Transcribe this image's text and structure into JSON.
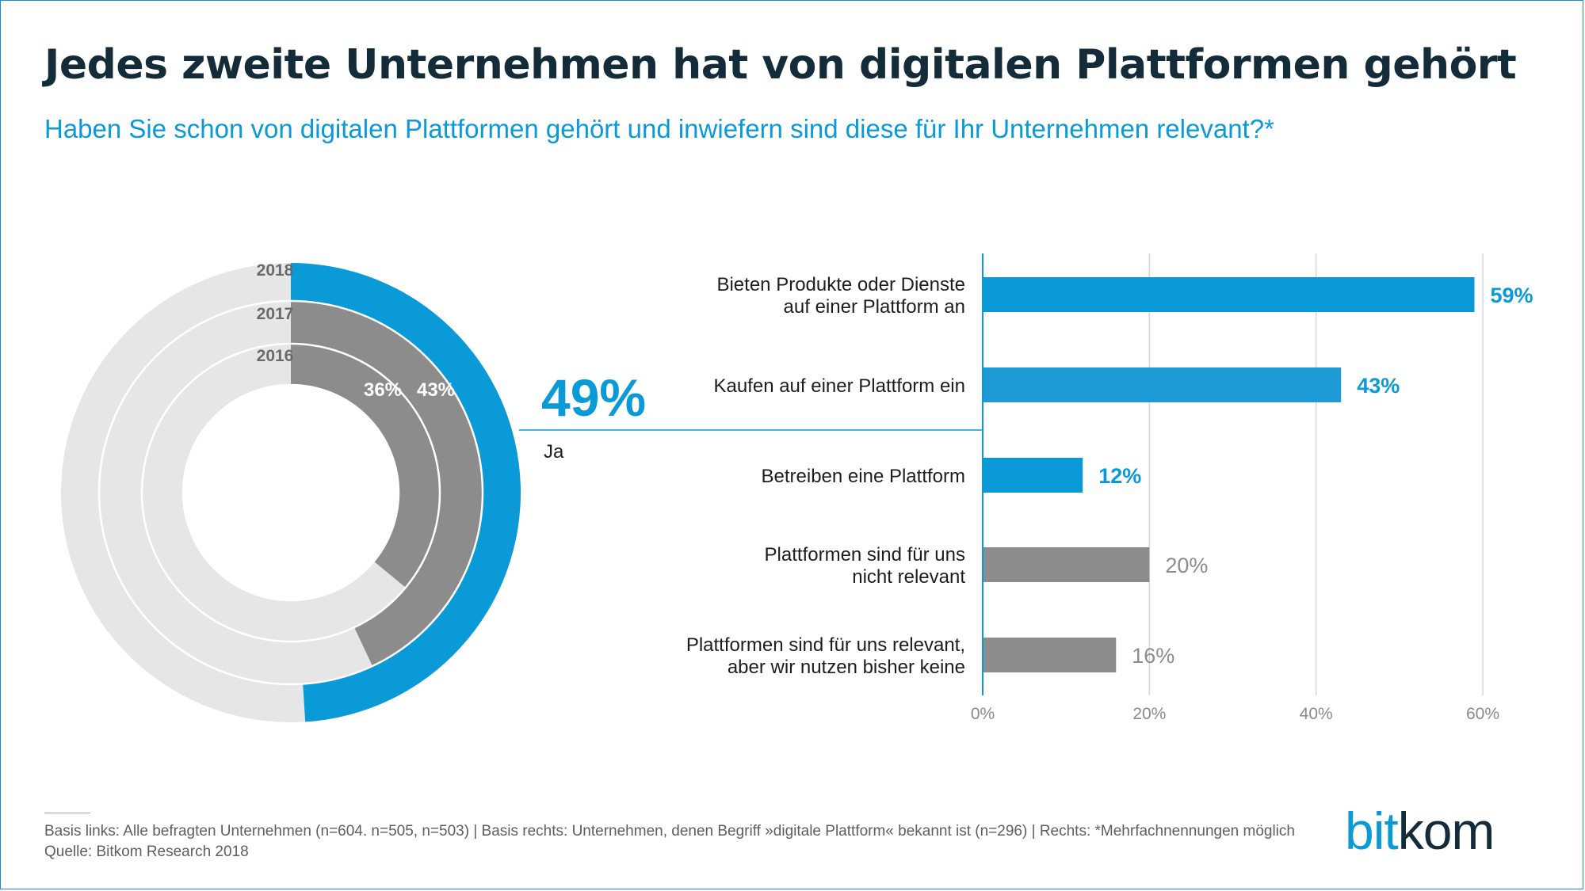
{
  "title": "Jedes zweite Unternehmen hat von digitalen Plattformen gehört",
  "subtitle": "Haben Sie schon von digitalen Plattformen gehört und inwiefern sind diese für Ihr Unternehmen relevant?*",
  "colors": {
    "accent_blue": "#0a9ad8",
    "mid_blue": "#1e9bd6",
    "dark_gray": "#8c8c8c",
    "light_gray": "#e6e6e6",
    "title": "#142b3a"
  },
  "chart_data": [
    {
      "type": "donut",
      "rings": [
        {
          "year": "2018",
          "value": 49,
          "label": "49%",
          "color": "#0a9ad8"
        },
        {
          "year": "2017",
          "value": 43,
          "label": "43%",
          "color": "#8c8c8c"
        },
        {
          "year": "2016",
          "value": 36,
          "label": "36%",
          "color": "#8c8c8c"
        }
      ],
      "callout": {
        "value": "49%",
        "label": "Ja"
      }
    },
    {
      "type": "bar",
      "orientation": "horizontal",
      "categories": [
        [
          "Bieten Produkte oder Dienste",
          "auf einer Plattform an"
        ],
        [
          "Kaufen auf einer Plattform ein"
        ],
        [
          "Betreiben eine Plattform"
        ],
        [
          "Plattformen sind für uns",
          "nicht relevant"
        ],
        [
          "Plattformen sind für uns relevant,",
          "aber wir nutzen bisher keine"
        ]
      ],
      "values": [
        59,
        43,
        12,
        20,
        16
      ],
      "value_labels": [
        "59%",
        "43%",
        "12%",
        "20%",
        "16%"
      ],
      "bar_colors": [
        "#0a9ad8",
        "#1e9bd6",
        "#0a9ad8",
        "#8c8c8c",
        "#8c8c8c"
      ],
      "xlim": [
        0,
        60
      ],
      "xticks": [
        0,
        20,
        40,
        60
      ],
      "xtick_labels": [
        "0%",
        "20%",
        "40%",
        "60%"
      ],
      "grid": true
    }
  ],
  "footnote": {
    "line1": "Basis links: Alle befragten Unternehmen (n=604. n=505, n=503) | Basis rechts: Unternehmen, denen Begriff »digitale Plattform« bekannt ist (n=296) | Rechts: *Mehrfachnennungen möglich",
    "line2": "Quelle: Bitkom Research 2018"
  },
  "logo": {
    "part1": "bit",
    "part2": "kom"
  }
}
